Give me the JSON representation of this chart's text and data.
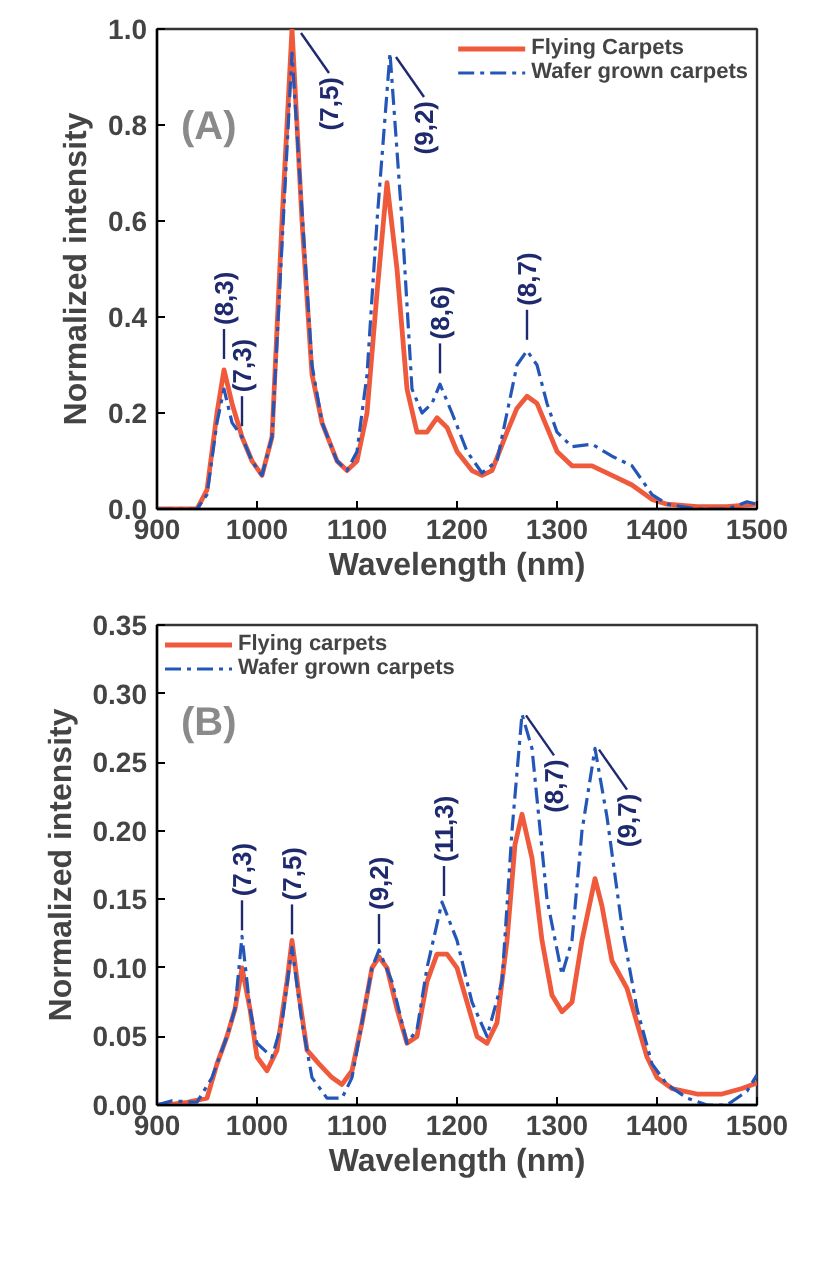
{
  "chart_data": [
    {
      "type": "line",
      "xlabel": "Wavelength (nm)",
      "ylabel": "Normalized intensity",
      "xlim": [
        900,
        1500
      ],
      "xticks": [
        900,
        1000,
        1100,
        1200,
        1300,
        1400,
        1500
      ],
      "ylim": [
        0,
        1.0
      ],
      "yticks": [
        {
          "value": 0,
          "label": "0.0"
        },
        0.2,
        0.4,
        0.6,
        0.8,
        {
          "value": 1,
          "label": "1.0"
        }
      ],
      "grid": false,
      "legend": "top right",
      "series": [
        {
          "name": "Flying Carpets",
          "color": "#f05a3c",
          "line_style": "solid",
          "x": [
            900,
            930,
            940,
            950,
            960,
            967,
            975,
            985,
            995,
            1005,
            1015,
            1025,
            1035,
            1045,
            1055,
            1065,
            1080,
            1090,
            1100,
            1110,
            1120,
            1130,
            1140,
            1150,
            1160,
            1170,
            1180,
            1190,
            1200,
            1215,
            1225,
            1235,
            1250,
            1260,
            1270,
            1280,
            1290,
            1300,
            1315,
            1335,
            1355,
            1375,
            1395,
            1410,
            1440,
            1470,
            1500
          ],
          "values": [
            0,
            0,
            0,
            0.04,
            0.2,
            0.29,
            0.22,
            0.15,
            0.1,
            0.07,
            0.15,
            0.6,
            1.0,
            0.6,
            0.28,
            0.18,
            0.1,
            0.08,
            0.1,
            0.2,
            0.45,
            0.68,
            0.5,
            0.25,
            0.16,
            0.16,
            0.19,
            0.17,
            0.12,
            0.08,
            0.07,
            0.08,
            0.16,
            0.21,
            0.235,
            0.22,
            0.17,
            0.12,
            0.09,
            0.09,
            0.07,
            0.05,
            0.02,
            0.01,
            0.005,
            0.005,
            0.01
          ]
        },
        {
          "name": "Wafer grown carpets",
          "color": "#2456b8",
          "line_style": "dashdot",
          "x": [
            900,
            940,
            950,
            960,
            967,
            975,
            985,
            995,
            1005,
            1015,
            1025,
            1035,
            1045,
            1055,
            1065,
            1080,
            1090,
            1100,
            1110,
            1120,
            1133,
            1145,
            1155,
            1165,
            1175,
            1183,
            1195,
            1210,
            1225,
            1240,
            1250,
            1260,
            1270,
            1280,
            1290,
            1300,
            1315,
            1335,
            1355,
            1375,
            1395,
            1410,
            1440,
            1470,
            1490,
            1500
          ],
          "values": [
            0,
            0,
            0.03,
            0.18,
            0.25,
            0.18,
            0.15,
            0.1,
            0.07,
            0.15,
            0.55,
            0.95,
            0.62,
            0.3,
            0.18,
            0.1,
            0.08,
            0.12,
            0.28,
            0.6,
            0.95,
            0.6,
            0.25,
            0.2,
            0.22,
            0.26,
            0.2,
            0.12,
            0.075,
            0.1,
            0.2,
            0.3,
            0.33,
            0.3,
            0.22,
            0.16,
            0.13,
            0.135,
            0.11,
            0.09,
            0.03,
            0.01,
            0,
            0,
            0.015,
            0.01
          ]
        }
      ],
      "annotations": [
        "(A)",
        {
          "text": "(8,3)",
          "x": 967,
          "y": 0.3
        },
        {
          "text": "(7,3)",
          "x": 985,
          "y": 0.16
        },
        {
          "text": "(7,5)",
          "x": 1040,
          "y": 1.0
        },
        {
          "text": "(9,2)",
          "x": 1135,
          "y": 0.95
        },
        {
          "text": "(8,6)",
          "x": 1183,
          "y": 0.27
        },
        {
          "text": "(8,7)",
          "x": 1270,
          "y": 0.34
        }
      ]
    },
    {
      "type": "line",
      "xlabel": "Wavelength (nm)",
      "ylabel": "Normalized intensity",
      "xlim": [
        900,
        1500
      ],
      "xticks": [
        900,
        1000,
        1100,
        1200,
        1300,
        1400,
        1500
      ],
      "ylim": [
        0,
        0.35
      ],
      "yticks": [
        {
          "value": 0,
          "label": "0.00"
        },
        0.05,
        {
          "value": 0.1,
          "label": "0.10"
        },
        0.15,
        {
          "value": 0.2,
          "label": "0.20"
        },
        0.25,
        {
          "value": 0.3,
          "label": "0.30"
        },
        0.35
      ],
      "grid": false,
      "legend": "top left",
      "series": [
        {
          "name": "Flying carpets",
          "color": "#f05a3c",
          "line_style": "solid",
          "x": [
            900,
            910,
            930,
            950,
            960,
            970,
            978,
            985,
            993,
            1000,
            1010,
            1020,
            1030,
            1035,
            1042,
            1050,
            1062,
            1075,
            1085,
            1095,
            1105,
            1115,
            1122,
            1130,
            1140,
            1150,
            1160,
            1170,
            1180,
            1190,
            1200,
            1210,
            1220,
            1230,
            1240,
            1250,
            1258,
            1265,
            1275,
            1285,
            1295,
            1305,
            1315,
            1325,
            1338,
            1345,
            1355,
            1370,
            1380,
            1390,
            1400,
            1415,
            1440,
            1465,
            1485,
            1500
          ],
          "values": [
            0,
            0,
            0.002,
            0.005,
            0.03,
            0.05,
            0.07,
            0.1,
            0.07,
            0.035,
            0.025,
            0.04,
            0.09,
            0.12,
            0.08,
            0.04,
            0.03,
            0.02,
            0.015,
            0.025,
            0.06,
            0.1,
            0.108,
            0.1,
            0.07,
            0.045,
            0.05,
            0.09,
            0.11,
            0.11,
            0.1,
            0.075,
            0.05,
            0.045,
            0.06,
            0.12,
            0.19,
            0.212,
            0.18,
            0.12,
            0.08,
            0.068,
            0.075,
            0.12,
            0.165,
            0.145,
            0.105,
            0.085,
            0.06,
            0.035,
            0.02,
            0.012,
            0.008,
            0.008,
            0.012,
            0.016
          ]
        },
        {
          "name": "Wafer grown carpets",
          "color": "#2456b8",
          "line_style": "dashdot",
          "x": [
            900,
            915,
            940,
            955,
            970,
            978,
            985,
            993,
            1000,
            1015,
            1025,
            1035,
            1045,
            1055,
            1070,
            1085,
            1095,
            1105,
            1115,
            1122,
            1135,
            1150,
            1160,
            1170,
            1185,
            1200,
            1215,
            1230,
            1245,
            1255,
            1265,
            1275,
            1290,
            1305,
            1315,
            1325,
            1338,
            1350,
            1365,
            1380,
            1395,
            1410,
            1430,
            1450,
            1470,
            1490,
            1500
          ],
          "values": [
            0,
            0.003,
            0.002,
            0.02,
            0.05,
            0.07,
            0.123,
            0.07,
            0.045,
            0.035,
            0.06,
            0.115,
            0.06,
            0.02,
            0.005,
            0.005,
            0.02,
            0.06,
            0.1,
            0.113,
            0.09,
            0.045,
            0.055,
            0.1,
            0.148,
            0.12,
            0.075,
            0.05,
            0.09,
            0.2,
            0.285,
            0.26,
            0.15,
            0.095,
            0.12,
            0.2,
            0.26,
            0.21,
            0.13,
            0.07,
            0.03,
            0.015,
            0.005,
            0,
            0,
            0.01,
            0.022
          ]
        }
      ],
      "annotations": [
        "(B)",
        {
          "text": "(7,3)",
          "x": 985,
          "y": 0.123
        },
        {
          "text": "(7,5)",
          "x": 1035,
          "y": 0.12
        },
        {
          "text": "(9,2)",
          "x": 1122,
          "y": 0.113
        },
        {
          "text": "(11,3)",
          "x": 1187,
          "y": 0.148
        },
        {
          "text": "(8,7)",
          "x": 1265,
          "y": 0.287
        },
        {
          "text": "(9,7)",
          "x": 1338,
          "y": 0.262
        }
      ]
    }
  ]
}
